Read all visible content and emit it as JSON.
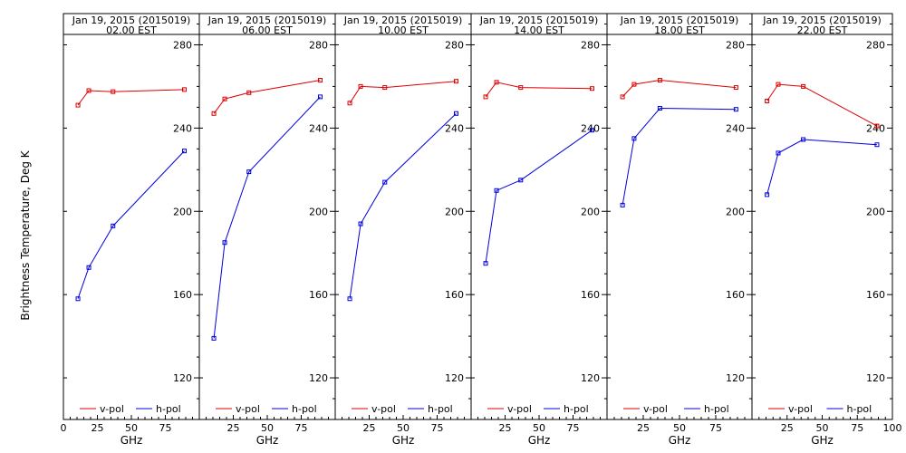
{
  "chart_data": {
    "type": "line",
    "ylabel": "Brightness Temperature, Deg K",
    "xlabel": "GHz",
    "xlim": [
      0,
      100
    ],
    "ylim": [
      100,
      295
    ],
    "xticks": [
      0,
      25,
      50,
      75,
      100
    ],
    "xtick_labels": [
      "0",
      "25",
      "50",
      "75",
      "100"
    ],
    "yticks": [
      120,
      160,
      200,
      240,
      280
    ],
    "ytick_labels": [
      "120",
      "160",
      "200",
      "240",
      "280"
    ],
    "legend_placement": "bottom",
    "colors": {
      "v-pol": "#dd0000",
      "h-pol": "#0000dd"
    },
    "panels": [
      {
        "title": "Jan 19, 2015 (2015019)",
        "subtitle": "02.00 EST",
        "series": [
          {
            "name": "v-pol",
            "x": [
              10.7,
              18.7,
              36.5,
              89
            ],
            "y": [
              251,
              258,
              257.5,
              258.5
            ]
          },
          {
            "name": "h-pol",
            "x": [
              10.7,
              18.7,
              36.5,
              89
            ],
            "y": [
              158,
              173,
              193,
              229
            ]
          }
        ]
      },
      {
        "title": "Jan 19, 2015 (2015019)",
        "subtitle": "06.00 EST",
        "series": [
          {
            "name": "v-pol",
            "x": [
              10.7,
              18.7,
              36.5,
              89
            ],
            "y": [
              247,
              254,
              257,
              263
            ]
          },
          {
            "name": "h-pol",
            "x": [
              10.7,
              18.7,
              36.5,
              89
            ],
            "y": [
              139,
              185,
              219,
              255
            ]
          }
        ]
      },
      {
        "title": "Jan 19, 2015 (2015019)",
        "subtitle": "10.00 EST",
        "series": [
          {
            "name": "v-pol",
            "x": [
              10.7,
              18.7,
              36.5,
              89
            ],
            "y": [
              252,
              260,
              259.5,
              262.5
            ]
          },
          {
            "name": "h-pol",
            "x": [
              10.7,
              18.7,
              36.5,
              89
            ],
            "y": [
              158,
              194,
              214,
              247
            ]
          }
        ]
      },
      {
        "title": "Jan 19, 2015 (2015019)",
        "subtitle": "14.00 EST",
        "series": [
          {
            "name": "v-pol",
            "x": [
              10.7,
              18.7,
              36.5,
              89
            ],
            "y": [
              255,
              262,
              259.5,
              259
            ]
          },
          {
            "name": "h-pol",
            "x": [
              10.7,
              18.7,
              36.5,
              89
            ],
            "y": [
              175,
              210,
              215,
              239
            ]
          }
        ]
      },
      {
        "title": "Jan 19, 2015 (2015019)",
        "subtitle": "18.00 EST",
        "series": [
          {
            "name": "v-pol",
            "x": [
              10.7,
              18.7,
              36.5,
              89
            ],
            "y": [
              255,
              261,
              263,
              259.5
            ]
          },
          {
            "name": "h-pol",
            "x": [
              10.7,
              18.7,
              36.5,
              89
            ],
            "y": [
              203,
              235,
              249.5,
              249
            ]
          }
        ]
      },
      {
        "title": "Jan 19, 2015 (2015019)",
        "subtitle": "22.00 EST",
        "series": [
          {
            "name": "v-pol",
            "x": [
              10.7,
              18.7,
              36.5,
              89
            ],
            "y": [
              253,
              261,
              260,
              241
            ]
          },
          {
            "name": "h-pol",
            "x": [
              10.7,
              18.7,
              36.5,
              89
            ],
            "y": [
              208,
              228,
              234.5,
              232
            ]
          }
        ]
      }
    ]
  }
}
